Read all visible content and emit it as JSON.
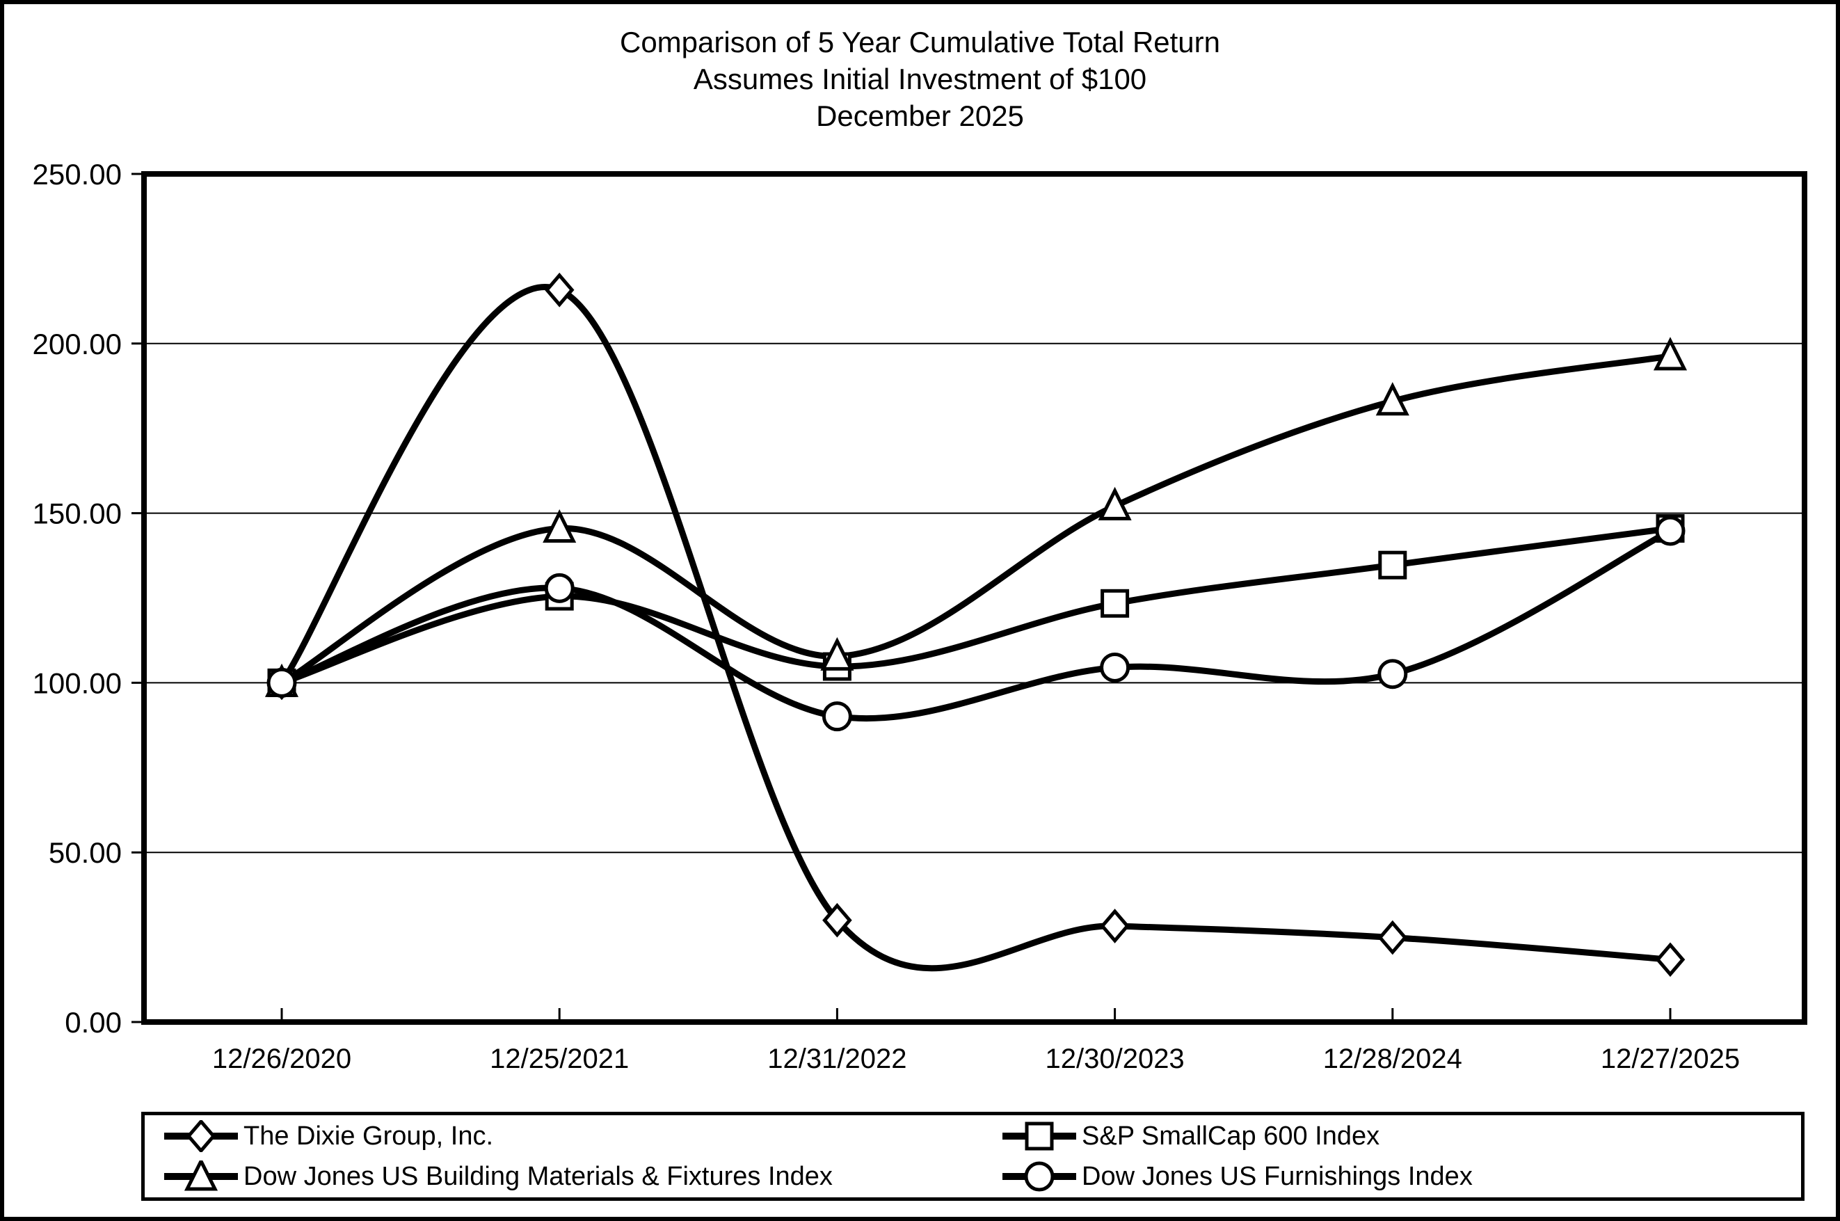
{
  "title": {
    "line1": "Comparison of 5 Year Cumulative Total Return",
    "line2": "Assumes Initial Investment of $100",
    "line3": "December 2025"
  },
  "chart_data": {
    "type": "line",
    "title": "Comparison of 5 Year Cumulative Total Return",
    "subtitle": "Assumes Initial Investment of $100",
    "subtitle2": "December 2025",
    "categories": [
      "12/26/2020",
      "12/25/2021",
      "12/31/2022",
      "12/30/2023",
      "12/28/2024",
      "12/27/2025"
    ],
    "series": [
      {
        "name": "The Dixie Group, Inc.",
        "marker": "diamond",
        "values": [
          100,
          215.8,
          30.0,
          28.3,
          24.9,
          18.4
        ]
      },
      {
        "name": "S&P SmallCap 600 Index",
        "marker": "square",
        "values": [
          100,
          125.5,
          104.8,
          123.4,
          134.7,
          145.5
        ]
      },
      {
        "name": "Dow Jones US Building Materials & Fixtures Index",
        "marker": "triangle",
        "values": [
          100,
          145.5,
          107.8,
          152.1,
          183.0,
          196.3
        ]
      },
      {
        "name": "Dow Jones US Furnishings Index",
        "marker": "circle",
        "values": [
          100,
          127.9,
          90.1,
          104.5,
          102.6,
          144.8
        ]
      }
    ],
    "ylim": [
      0,
      250
    ],
    "yticks": [
      0,
      50,
      100,
      150,
      200,
      250
    ],
    "ytick_labels": [
      "0.00",
      "50.00",
      "100.00",
      "150.00",
      "200.00",
      "250.00"
    ],
    "xlabel": "",
    "ylabel": "",
    "grid": true,
    "smoothed": true,
    "line_color": "#000000",
    "marker_fill": "#ffffff",
    "background_color": "#ffffff",
    "legend_position": "bottom"
  }
}
